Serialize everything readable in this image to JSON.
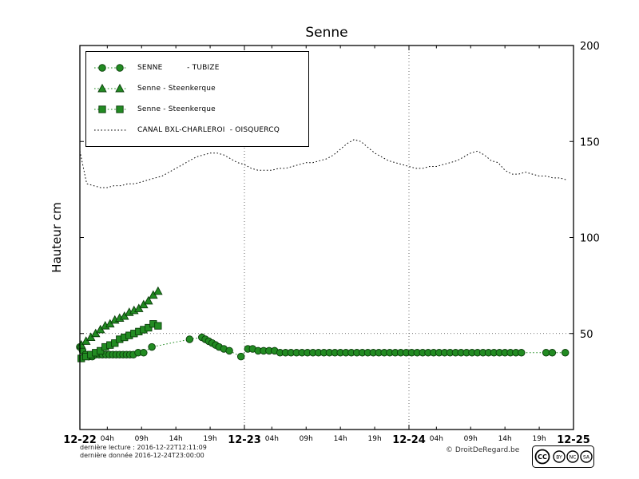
{
  "chart_data": {
    "type": "line",
    "title": "Senne",
    "ylabel": "Hauteur cm",
    "xlabel": "",
    "ylim": [
      0,
      200
    ],
    "xlim_hours": [
      0,
      72
    ],
    "y_ticks": [
      50,
      100,
      150,
      200
    ],
    "y_tick_side": "right",
    "grid": {
      "vertical_hours": [
        24,
        48
      ],
      "horizontal_values": [
        50
      ]
    },
    "legend_position": "upper left",
    "x_major_ticks": [
      {
        "hour": 0,
        "label": "12-22"
      },
      {
        "hour": 24,
        "label": "12-23"
      },
      {
        "hour": 48,
        "label": "12-24"
      },
      {
        "hour": 72,
        "label": "12-25"
      }
    ],
    "x_minor_ticks": [
      {
        "hour": 4,
        "label": "04h"
      },
      {
        "hour": 9,
        "label": "09h"
      },
      {
        "hour": 14,
        "label": "14h"
      },
      {
        "hour": 19,
        "label": "19h"
      },
      {
        "hour": 28,
        "label": "04h"
      },
      {
        "hour": 33,
        "label": "09h"
      },
      {
        "hour": 38,
        "label": "14h"
      },
      {
        "hour": 43,
        "label": "19h"
      },
      {
        "hour": 52,
        "label": "04h"
      },
      {
        "hour": 57,
        "label": "09h"
      },
      {
        "hour": 62,
        "label": "14h"
      },
      {
        "hour": 67,
        "label": "19h"
      }
    ],
    "series": [
      {
        "name": "SENNE          - TUBIZE",
        "marker": "circle",
        "line": "dotted",
        "color": "#228b22",
        "edge": "#0a3d0a",
        "points": [
          [
            0,
            43
          ],
          [
            0.4,
            41
          ],
          [
            0.8,
            39
          ],
          [
            1.3,
            38
          ],
          [
            1.8,
            38
          ],
          [
            2.3,
            39
          ],
          [
            2.8,
            39
          ],
          [
            3.3,
            39
          ],
          [
            3.8,
            39
          ],
          [
            4.3,
            39
          ],
          [
            4.8,
            39
          ],
          [
            5.3,
            39
          ],
          [
            5.8,
            39
          ],
          [
            6.3,
            39
          ],
          [
            6.8,
            39
          ],
          [
            7.3,
            39
          ],
          [
            7.8,
            39
          ],
          [
            8.5,
            40
          ],
          [
            9.3,
            40
          ],
          [
            10.5,
            43
          ],
          [
            16,
            47
          ],
          [
            17.8,
            48
          ],
          [
            18.3,
            47
          ],
          [
            18.8,
            46
          ],
          [
            19.3,
            45
          ],
          [
            19.8,
            44
          ],
          [
            20.3,
            43
          ],
          [
            21,
            42
          ],
          [
            21.8,
            41
          ],
          [
            23.5,
            38
          ],
          [
            24.5,
            42
          ],
          [
            25.2,
            42
          ],
          [
            26,
            41
          ],
          [
            26.8,
            41
          ],
          [
            27.6,
            41
          ],
          [
            28.4,
            41
          ],
          [
            29.2,
            40
          ],
          [
            30,
            40
          ],
          [
            30.8,
            40
          ],
          [
            31.6,
            40
          ],
          [
            32.4,
            40
          ],
          [
            33.2,
            40
          ],
          [
            34,
            40
          ],
          [
            34.8,
            40
          ],
          [
            35.6,
            40
          ],
          [
            36.4,
            40
          ],
          [
            37.2,
            40
          ],
          [
            38,
            40
          ],
          [
            38.8,
            40
          ],
          [
            39.6,
            40
          ],
          [
            40.4,
            40
          ],
          [
            41.2,
            40
          ],
          [
            42,
            40
          ],
          [
            42.8,
            40
          ],
          [
            43.6,
            40
          ],
          [
            44.4,
            40
          ],
          [
            45.2,
            40
          ],
          [
            46,
            40
          ],
          [
            46.8,
            40
          ],
          [
            47.6,
            40
          ],
          [
            48.4,
            40
          ],
          [
            49.2,
            40
          ],
          [
            50,
            40
          ],
          [
            50.8,
            40
          ],
          [
            51.6,
            40
          ],
          [
            52.4,
            40
          ],
          [
            53.2,
            40
          ],
          [
            54,
            40
          ],
          [
            54.8,
            40
          ],
          [
            55.6,
            40
          ],
          [
            56.4,
            40
          ],
          [
            57.2,
            40
          ],
          [
            58,
            40
          ],
          [
            58.8,
            40
          ],
          [
            59.6,
            40
          ],
          [
            60.4,
            40
          ],
          [
            61.2,
            40
          ],
          [
            62,
            40
          ],
          [
            62.8,
            40
          ],
          [
            63.6,
            40
          ],
          [
            64.4,
            40
          ],
          [
            68,
            40
          ],
          [
            68.9,
            40
          ],
          [
            70.8,
            40
          ]
        ]
      },
      {
        "name": "Senne - Steenkerque",
        "marker": "triangle",
        "line": "dotted",
        "color": "#228b22",
        "edge": "#0a3d0a",
        "points": [
          [
            0.2,
            44
          ],
          [
            0.9,
            46
          ],
          [
            1.6,
            48
          ],
          [
            2.3,
            50
          ],
          [
            3,
            52
          ],
          [
            3.7,
            54
          ],
          [
            4.4,
            55
          ],
          [
            5.1,
            57
          ],
          [
            5.8,
            58
          ],
          [
            6.5,
            59
          ],
          [
            7.2,
            61
          ],
          [
            7.9,
            62
          ],
          [
            8.6,
            63
          ],
          [
            9.3,
            65
          ],
          [
            10,
            67
          ],
          [
            10.7,
            70
          ],
          [
            11.4,
            72
          ]
        ]
      },
      {
        "name": "Senne - Steenkerque",
        "marker": "square",
        "line": "dotted",
        "color": "#228b22",
        "edge": "#0a3d0a",
        "points": [
          [
            0.2,
            37
          ],
          [
            0.9,
            38
          ],
          [
            1.6,
            39
          ],
          [
            2.3,
            40
          ],
          [
            3,
            41
          ],
          [
            3.7,
            43
          ],
          [
            4.4,
            44
          ],
          [
            5.1,
            45
          ],
          [
            5.8,
            47
          ],
          [
            6.5,
            48
          ],
          [
            7.2,
            49
          ],
          [
            7.9,
            50
          ],
          [
            8.6,
            51
          ],
          [
            9.3,
            52
          ],
          [
            10,
            53
          ],
          [
            10.7,
            55
          ],
          [
            11.4,
            54
          ]
        ]
      },
      {
        "name": "CANAL BXL-CHARLEROI  - OISQUERCQ",
        "marker": "none",
        "line": "dotted",
        "color": "#000000",
        "edge": "#000000",
        "points": [
          [
            0,
            145
          ],
          [
            1,
            128
          ],
          [
            2,
            127
          ],
          [
            3,
            126
          ],
          [
            4,
            126
          ],
          [
            5,
            127
          ],
          [
            6,
            127
          ],
          [
            7,
            128
          ],
          [
            8,
            128
          ],
          [
            9,
            129
          ],
          [
            10,
            130
          ],
          [
            11,
            131
          ],
          [
            12,
            132
          ],
          [
            13,
            134
          ],
          [
            14,
            136
          ],
          [
            15,
            138
          ],
          [
            16,
            140
          ],
          [
            17,
            142
          ],
          [
            18,
            143
          ],
          [
            19,
            144
          ],
          [
            20,
            144
          ],
          [
            21,
            143
          ],
          [
            22,
            141
          ],
          [
            23,
            139
          ],
          [
            24,
            138
          ],
          [
            25,
            136
          ],
          [
            26,
            135
          ],
          [
            27,
            135
          ],
          [
            28,
            135
          ],
          [
            29,
            136
          ],
          [
            30,
            136
          ],
          [
            31,
            137
          ],
          [
            32,
            138
          ],
          [
            33,
            139
          ],
          [
            34,
            139
          ],
          [
            35,
            140
          ],
          [
            36,
            141
          ],
          [
            37,
            143
          ],
          [
            38,
            146
          ],
          [
            39,
            149
          ],
          [
            40,
            151
          ],
          [
            41,
            150
          ],
          [
            42,
            147
          ],
          [
            43,
            144
          ],
          [
            44,
            142
          ],
          [
            45,
            140
          ],
          [
            46,
            139
          ],
          [
            47,
            138
          ],
          [
            48,
            137
          ],
          [
            49,
            136
          ],
          [
            50,
            136
          ],
          [
            51,
            137
          ],
          [
            52,
            137
          ],
          [
            53,
            138
          ],
          [
            54,
            139
          ],
          [
            55,
            140
          ],
          [
            56,
            142
          ],
          [
            57,
            144
          ],
          [
            58,
            145
          ],
          [
            59,
            143
          ],
          [
            60,
            140
          ],
          [
            61,
            139
          ],
          [
            62,
            135
          ],
          [
            63,
            133
          ],
          [
            64,
            133
          ],
          [
            65,
            134
          ],
          [
            66,
            133
          ],
          [
            67,
            132
          ],
          [
            68,
            132
          ],
          [
            69,
            131
          ],
          [
            70,
            131
          ],
          [
            71,
            130
          ]
        ]
      }
    ]
  },
  "footer": {
    "last_reading": "dernière lecture : 2016-12-22T12:11:09",
    "last_data": "dernière donnée  2016-12-24T23:00:00",
    "copyright": "© DroitDeRegard.be",
    "cc_logo": "CC",
    "cc_letters": [
      "BY",
      "NC",
      "SA"
    ]
  }
}
